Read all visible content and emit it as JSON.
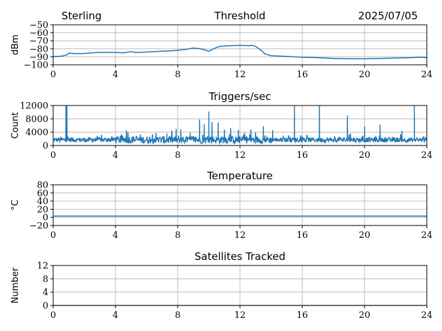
{
  "header": {
    "station": "Sterling",
    "date": "2025/07/05"
  },
  "colors": {
    "series": "#1f77b4",
    "grid": "#b0b0b0",
    "axis": "#000000"
  },
  "chart_data": [
    {
      "type": "line",
      "title": "Threshold",
      "xlabel": "",
      "ylabel": "dBm",
      "xlim": [
        0,
        24
      ],
      "ylim": [
        -100,
        -50
      ],
      "xticks": [
        0,
        4,
        8,
        12,
        16,
        20,
        24
      ],
      "yticks": [
        -100,
        -90,
        -80,
        -70,
        -60,
        -50
      ],
      "xtick_labels": [
        "0",
        "4",
        "8",
        "12",
        "16",
        "20",
        "24"
      ],
      "ytick_labels": [
        "−100",
        "−90",
        "−80",
        "−70",
        "−60",
        "−50"
      ],
      "grid": true,
      "series": [
        {
          "x": [
            0,
            0.3,
            0.6,
            0.9,
            1.0,
            1.5,
            2,
            2.5,
            3,
            3.5,
            4,
            4.5,
            5,
            5.3,
            5.5,
            6,
            6.5,
            7,
            7.5,
            8,
            8.3,
            8.6,
            9,
            9.3,
            9.6,
            10,
            10.3,
            10.6,
            11,
            11.5,
            12,
            12.5,
            12.8,
            13.0,
            13.2,
            13.4,
            13.6,
            14,
            14.5,
            15,
            16,
            17,
            18,
            19,
            20,
            21,
            22,
            23,
            23.5,
            24
          ],
          "y": [
            -89.5,
            -89.5,
            -89,
            -87.5,
            -85.5,
            -86,
            -85.8,
            -85,
            -84.5,
            -84.5,
            -84.5,
            -85,
            -83.5,
            -84.5,
            -84.5,
            -84,
            -83.5,
            -83,
            -82.5,
            -82,
            -81,
            -80.5,
            -79,
            -79.5,
            -80.5,
            -83,
            -80,
            -77.5,
            -76.5,
            -76,
            -75.5,
            -76,
            -75.8,
            -77,
            -79.5,
            -82.5,
            -86.5,
            -88.5,
            -89,
            -89.5,
            -90.5,
            -91,
            -92,
            -92.5,
            -92.5,
            -92,
            -91.5,
            -91,
            -90.5,
            -91
          ]
        }
      ]
    },
    {
      "type": "line",
      "title": "Triggers/sec",
      "xlabel": "",
      "ylabel": "Count",
      "xlim": [
        0,
        24
      ],
      "ylim": [
        0,
        12000
      ],
      "xticks": [
        0,
        4,
        8,
        12,
        16,
        20,
        24
      ],
      "yticks": [
        0,
        4000,
        8000,
        12000
      ],
      "xtick_labels": [
        "0",
        "4",
        "8",
        "12",
        "16",
        "20",
        "24"
      ],
      "ytick_labels": [
        "0",
        "4000",
        "8000",
        "12000"
      ],
      "grid": true,
      "baseline": 1700,
      "spikes": [
        {
          "x": 0.82,
          "y": 12000
        },
        {
          "x": 0.88,
          "y": 12000
        },
        {
          "x": 3.1,
          "y": 3200
        },
        {
          "x": 4.7,
          "y": 4600
        },
        {
          "x": 5.6,
          "y": 3400
        },
        {
          "x": 6.6,
          "y": 3800
        },
        {
          "x": 7.3,
          "y": 3600
        },
        {
          "x": 7.9,
          "y": 5000
        },
        {
          "x": 8.2,
          "y": 4800
        },
        {
          "x": 8.8,
          "y": 3800
        },
        {
          "x": 9.4,
          "y": 7800
        },
        {
          "x": 9.7,
          "y": 6400
        },
        {
          "x": 10.0,
          "y": 10200
        },
        {
          "x": 10.2,
          "y": 7000
        },
        {
          "x": 10.6,
          "y": 6900
        },
        {
          "x": 11.0,
          "y": 4800
        },
        {
          "x": 11.4,
          "y": 5200
        },
        {
          "x": 11.9,
          "y": 4700
        },
        {
          "x": 12.3,
          "y": 3800
        },
        {
          "x": 12.7,
          "y": 4800
        },
        {
          "x": 13.0,
          "y": 4000
        },
        {
          "x": 13.5,
          "y": 5800
        },
        {
          "x": 14.1,
          "y": 4600
        },
        {
          "x": 15.5,
          "y": 12000
        },
        {
          "x": 17.1,
          "y": 12000
        },
        {
          "x": 18.9,
          "y": 9000
        },
        {
          "x": 19.1,
          "y": 3600
        },
        {
          "x": 20.0,
          "y": 5800
        },
        {
          "x": 21.0,
          "y": 6300
        },
        {
          "x": 22.4,
          "y": 4400
        },
        {
          "x": 23.2,
          "y": 12000
        }
      ]
    },
    {
      "type": "line",
      "title": "Temperature",
      "xlabel": "",
      "ylabel": "°C",
      "xlim": [
        0,
        24
      ],
      "ylim": [
        -20,
        80
      ],
      "xticks": [
        0,
        4,
        8,
        12,
        16,
        20,
        24
      ],
      "yticks": [
        -20,
        0,
        20,
        40,
        60,
        80
      ],
      "xtick_labels": [
        "0",
        "4",
        "8",
        "12",
        "16",
        "20",
        "24"
      ],
      "ytick_labels": [
        "−20",
        "0",
        "20",
        "40",
        "60",
        "80"
      ],
      "grid": true,
      "series": [
        {
          "x": [
            0,
            24
          ],
          "y": [
            3,
            3
          ]
        }
      ]
    },
    {
      "type": "line",
      "title": "Satellites Tracked",
      "xlabel": "",
      "ylabel": "Number",
      "xlim": [
        0,
        24
      ],
      "ylim": [
        0,
        12
      ],
      "xticks": [
        0,
        4,
        8,
        12,
        16,
        20,
        24
      ],
      "yticks": [
        0,
        4,
        8,
        12
      ],
      "xtick_labels": [
        "0",
        "4",
        "8",
        "12",
        "16",
        "20",
        "24"
      ],
      "ytick_labels": [
        "0",
        "4",
        "8",
        "12"
      ],
      "grid": true,
      "series": [
        {
          "x": [
            0,
            24
          ],
          "y": [
            0,
            0
          ]
        }
      ]
    }
  ]
}
